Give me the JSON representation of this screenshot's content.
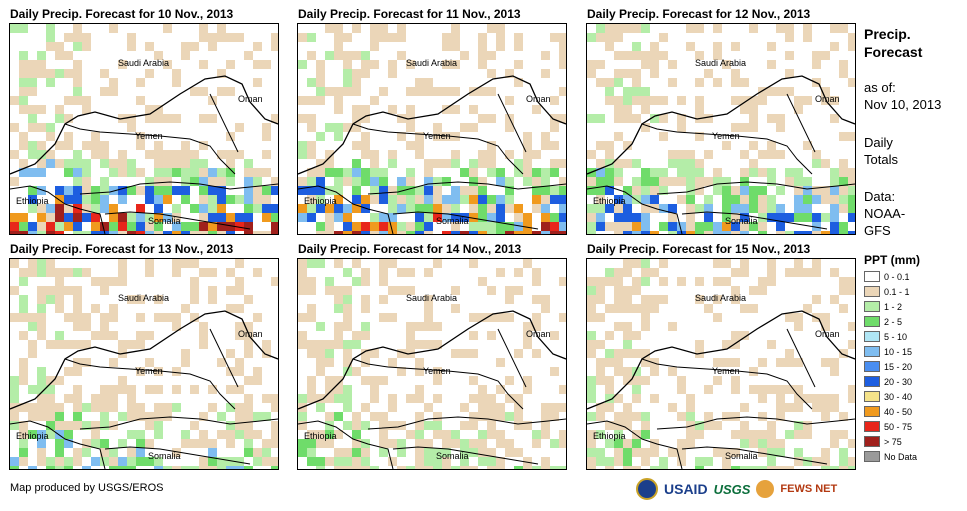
{
  "panels": [
    {
      "title": "Daily Precip. Forecast for 10 Nov., 2013",
      "intensity": 1.0
    },
    {
      "title": "Daily Precip. Forecast for 11 Nov., 2013",
      "intensity": 0.9
    },
    {
      "title": "Daily Precip. Forecast for 12 Nov., 2013",
      "intensity": 0.6
    },
    {
      "title": "Daily Precip. Forecast for 13 Nov., 2013",
      "intensity": 0.35
    },
    {
      "title": "Daily Precip. Forecast for 14 Nov., 2013",
      "intensity": 0.2
    },
    {
      "title": "Daily Precip. Forecast for 15 Nov., 2013",
      "intensity": 0.2
    }
  ],
  "country_labels": {
    "saudi_arabia": "Saudi Arabia",
    "oman": "Oman",
    "yemen": "Yemen",
    "ethiopia": "Ethiopia",
    "somalia": "Somalia"
  },
  "side": {
    "title_line1": "Precip.",
    "title_line2": "Forecast",
    "asof_line1": "as of:",
    "asof_line2": "Nov 10, 2013",
    "daily_line1": "Daily",
    "daily_line2": "Totals",
    "data_line1": "Data:",
    "data_line2": "NOAA-",
    "data_line3": "GFS"
  },
  "legend": {
    "title": "PPT (mm)",
    "items": [
      {
        "label": "0 - 0.1",
        "color": "#ffffff"
      },
      {
        "label": "0.1 - 1",
        "color": "#ebd6b8"
      },
      {
        "label": "1 - 2",
        "color": "#b4eda8"
      },
      {
        "label": "2 - 5",
        "color": "#6fdc6a"
      },
      {
        "label": "5 - 10",
        "color": "#b0e6f5"
      },
      {
        "label": "10 - 15",
        "color": "#7fbdf0"
      },
      {
        "label": "15 - 20",
        "color": "#4a8ef0"
      },
      {
        "label": "20 - 30",
        "color": "#1d5ee0"
      },
      {
        "label": "30 - 40",
        "color": "#f5e38a"
      },
      {
        "label": "40 - 50",
        "color": "#f09a1e"
      },
      {
        "label": "50 - 75",
        "color": "#e8261b"
      },
      {
        "label": "> 75",
        "color": "#a0201c"
      },
      {
        "label": "No Data",
        "color": "#9a9a9a"
      }
    ]
  },
  "credit": "Map produced by USGS/EROS",
  "logos": {
    "usaid": "USAID",
    "usgs": "USGS",
    "fews": "FEWS NET"
  }
}
